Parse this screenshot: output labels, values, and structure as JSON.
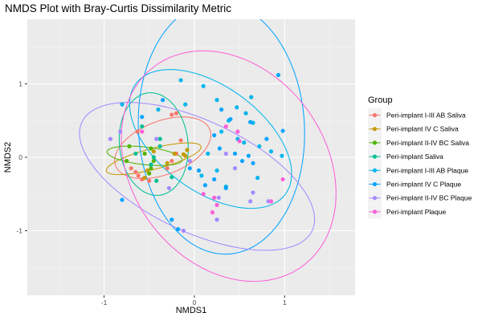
{
  "chart_data": {
    "type": "scatter",
    "title": "NMDS Plot with Bray-Curtis Dissimilarity Metric",
    "xlabel": "NMDS1",
    "ylabel": "NMDS2",
    "xlim": [
      -1.85,
      1.78
    ],
    "ylim": [
      -1.88,
      1.88
    ],
    "x_ticks": [
      -1,
      0,
      1
    ],
    "y_ticks": [
      -1,
      0,
      1
    ],
    "x_tick_labels": [
      "-1",
      "0",
      "1"
    ],
    "y_tick_labels": [
      "-1",
      "0",
      "1"
    ],
    "grid": true,
    "legend": {
      "title": "Group",
      "placement": "right"
    },
    "series": [
      {
        "name": "Peri-implant I-III AB Saliva",
        "color": "#F8766D",
        "points": [
          [
            -0.25,
            0.58
          ],
          [
            -0.2,
            0.6
          ],
          [
            -0.63,
            0.35
          ],
          [
            -0.15,
            0.23
          ],
          [
            -0.2,
            0.05
          ],
          [
            -0.25,
            -0.05
          ],
          [
            -0.3,
            -0.15
          ],
          [
            -0.7,
            -0.15
          ],
          [
            -0.65,
            -0.2
          ],
          [
            -0.62,
            -0.25
          ],
          [
            -0.58,
            -0.3
          ],
          [
            -0.55,
            -0.28
          ],
          [
            -0.5,
            -0.32
          ]
        ],
        "ellipse": {
          "cx": -0.35,
          "cy": 0.13,
          "rx": 0.58,
          "ry": 0.35,
          "angle_deg": 30
        }
      },
      {
        "name": "Peri-implant IV C Saliva",
        "color": "#C49A00",
        "points": [
          [
            -0.45,
            0.08
          ],
          [
            -0.1,
            0.02
          ],
          [
            -0.12,
            0.04
          ],
          [
            -0.3,
            -0.08
          ],
          [
            -0.52,
            -0.18
          ],
          [
            -0.55,
            -0.28
          ],
          [
            -0.08,
            0.1
          ],
          [
            -0.75,
            -0.05
          ],
          [
            -0.22,
            0.05
          ]
        ],
        "ellipse": {
          "cx": -0.45,
          "cy": -0.02,
          "rx": 0.55,
          "ry": 0.14,
          "angle_deg": 18
        }
      },
      {
        "name": "Peri-implant II-IV BC Saliva",
        "color": "#53B400",
        "points": [
          [
            -0.45,
            -0.05
          ],
          [
            -0.48,
            -0.15
          ],
          [
            -0.5,
            -0.22
          ],
          [
            -0.55,
            0.05
          ],
          [
            -0.48,
            0.12
          ],
          [
            -0.72,
            0.15
          ],
          [
            -0.75,
            -0.05
          ]
        ],
        "ellipse": {
          "cx": -0.55,
          "cy": 0.02,
          "rx": 0.42,
          "ry": 0.12,
          "angle_deg": -8
        }
      },
      {
        "name": "Peri-implant Saliva",
        "color": "#00C094",
        "points": [
          [
            -0.38,
            0.15
          ],
          [
            -0.45,
            0.0
          ],
          [
            -0.48,
            -0.1
          ],
          [
            -0.25,
            -0.27
          ],
          [
            -0.42,
            -0.32
          ],
          [
            -0.38,
            0.25
          ],
          [
            -0.58,
            0.42
          ],
          [
            -0.65,
            0.05
          ]
        ],
        "ellipse": {
          "cx": -0.45,
          "cy": 0.18,
          "rx": 0.38,
          "ry": 0.7,
          "angle_deg": 4
        }
      },
      {
        "name": "Peri-implant I-III AB Plaque",
        "color": "#00B6EB",
        "points": [
          [
            -0.8,
            0.72
          ],
          [
            -0.4,
            0.65
          ],
          [
            -0.15,
            1.05
          ],
          [
            0.1,
            0.97
          ],
          [
            -0.1,
            0.72
          ],
          [
            0.25,
            0.78
          ],
          [
            0.47,
            0.68
          ],
          [
            0.63,
            0.82
          ],
          [
            0.38,
            0.5
          ],
          [
            0.57,
            0.6
          ],
          [
            0.3,
            0.35
          ],
          [
            0.65,
            0.47
          ],
          [
            0.48,
            0.25
          ],
          [
            0.72,
            0.15
          ],
          [
            0.85,
            0.08
          ],
          [
            0.97,
            0.02
          ],
          [
            0.25,
            -0.18
          ],
          [
            0.7,
            -0.28
          ],
          [
            0.35,
            -0.4
          ],
          [
            0.15,
            0.05
          ],
          [
            0.55,
            0.2
          ],
          [
            0.08,
            -0.25
          ]
        ],
        "ellipse": {
          "cx": 0.18,
          "cy": 0.25,
          "rx": 1.13,
          "ry": 0.65,
          "angle_deg": -48
        }
      },
      {
        "name": "Peri-implant IV C Plaque",
        "color": "#06A4FF",
        "points": [
          [
            -0.8,
            -0.58
          ],
          [
            -0.58,
            0.55
          ],
          [
            -0.35,
            0.78
          ],
          [
            0.93,
            1.12
          ],
          [
            0.98,
            0.36
          ],
          [
            0.4,
            0.52
          ],
          [
            0.3,
            0.65
          ],
          [
            0.22,
            0.3
          ],
          [
            0.62,
            0.48
          ],
          [
            0.28,
            0.12
          ],
          [
            0.45,
            0.05
          ],
          [
            0.53,
            -0.05
          ],
          [
            0.8,
            0.25
          ],
          [
            0.65,
            -0.08
          ],
          [
            0.22,
            -0.3
          ],
          [
            0.35,
            -0.42
          ],
          [
            0.05,
            -0.18
          ],
          [
            -0.05,
            -0.15
          ],
          [
            -0.25,
            -0.85
          ],
          [
            -0.18,
            -0.98
          ],
          [
            0.12,
            -0.38
          ],
          [
            0.6,
            0.02
          ]
        ],
        "ellipse": {
          "cx": 0.3,
          "cy": 0.4,
          "rx": 0.92,
          "ry": 1.72,
          "angle_deg": 2
        }
      },
      {
        "name": "Peri-implant II-IV BC Plaque",
        "color": "#A58AFF",
        "points": [
          [
            -0.93,
            0.25
          ],
          [
            -0.82,
            0.35
          ],
          [
            -0.42,
            0.25
          ],
          [
            -0.05,
            -0.05
          ],
          [
            0.35,
            0.05
          ],
          [
            0.45,
            -0.15
          ],
          [
            0.27,
            -0.55
          ],
          [
            0.25,
            -0.85
          ],
          [
            0.65,
            -0.48
          ],
          [
            0.62,
            -0.6
          ],
          [
            -0.12,
            -1.0
          ],
          [
            -0.28,
            -0.42
          ],
          [
            0.82,
            -0.6
          ]
        ],
        "ellipse": {
          "cx": 0.03,
          "cy": -0.26,
          "rx": 1.48,
          "ry": 0.72,
          "angle_deg": -33
        }
      },
      {
        "name": "Peri-implant Plaque",
        "color": "#FB61D7",
        "points": [
          [
            -0.58,
            0.35
          ],
          [
            0.35,
            0.42
          ],
          [
            0.48,
            0.35
          ],
          [
            0.22,
            -0.55
          ],
          [
            0.25,
            -0.65
          ],
          [
            0.1,
            -0.5
          ],
          [
            0.85,
            -0.6
          ],
          [
            0.98,
            -0.3
          ],
          [
            0.2,
            -0.75
          ],
          [
            0.5,
            0.22
          ]
        ],
        "ellipse": {
          "cx": 0.38,
          "cy": -0.12,
          "rx": 1.12,
          "ry": 1.62,
          "angle_deg": 20
        }
      }
    ]
  }
}
